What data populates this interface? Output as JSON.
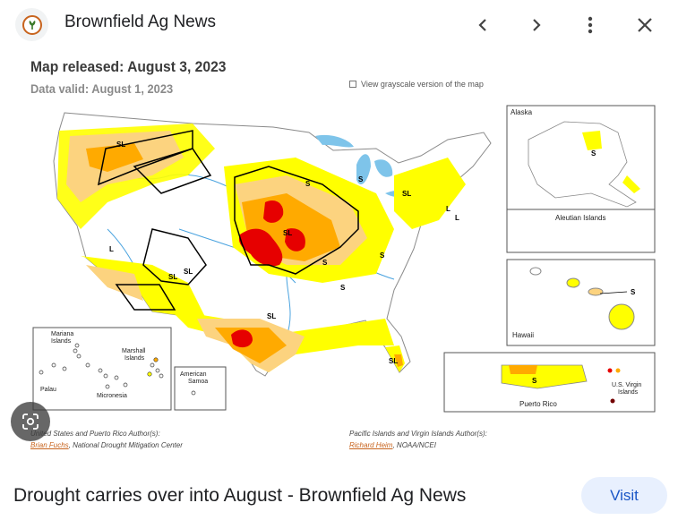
{
  "header": {
    "site_name": "Brownfield Ag News",
    "logo_icon": "brownfield-leaf-logo",
    "prev_icon": "chevron-left-icon",
    "next_icon": "chevron-right-icon",
    "more_icon": "more-vert-icon",
    "close_icon": "close-icon"
  },
  "map": {
    "title": "Map released: August 3, 2023",
    "subtitle": "Data valid: August 1, 2023",
    "grayscale_label": "View grayscale version of the map",
    "labels": {
      "sl": "SL",
      "s": "S",
      "l": "L",
      "alaska": "Alaska",
      "aleutian": "Aleutian Islands",
      "hawaii": "Hawaii",
      "puerto_rico": "Puerto Rico",
      "usvi_line1": "U.S. Virgin",
      "usvi_line2": "Islands",
      "mariana_line1": "Mariana",
      "mariana_line2": "Islands",
      "marshall_line1": "Marshall",
      "marshall_line2": "Islands",
      "palau": "Palau",
      "micronesia": "Micronesia",
      "samoa_line1": "American",
      "samoa_line2": "Samoa"
    },
    "author_left_heading": "United States and Puerto Rico Author(s):",
    "author_left_name": "Brian Fuchs",
    "author_left_org": ", National Drought Mitigation Center",
    "author_right_heading": "Pacific Islands and Virgin Islands Author(s):",
    "author_right_name": "Richard Heim",
    "author_right_org": ", NOAA/NCEI",
    "colors": {
      "d0": "#ffff00",
      "d1": "#fcd37f",
      "d2": "#ffaa00",
      "d3": "#e60000",
      "d4": "#730000",
      "water": "#4aa3df"
    }
  },
  "lens_icon": "google-lens-icon",
  "caption": "Drought carries over into August - Brownfield Ag News",
  "visit_label": "Visit"
}
